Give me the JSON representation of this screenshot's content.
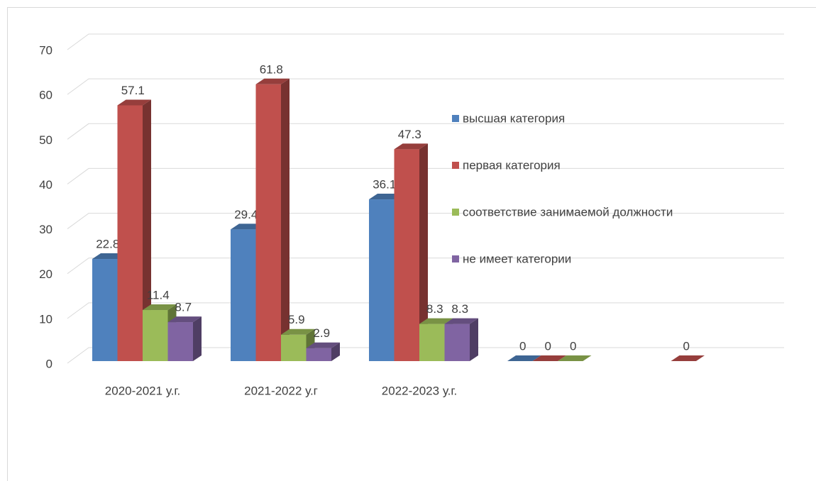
{
  "chart_data": {
    "type": "bar3d",
    "categories": [
      "2020-2021 у.г.",
      "2021-2022 у.г",
      "2022-2023 у.г.",
      null,
      null
    ],
    "series": [
      {
        "name": "высшая категория",
        "color": "#4f81bd",
        "values": [
          22.8,
          29.4,
          36.1,
          0,
          null
        ]
      },
      {
        "name": "первая категория",
        "color": "#c0504d",
        "values": [
          57.1,
          61.8,
          47.3,
          0,
          0
        ]
      },
      {
        "name": "соответствие занимаемой должности",
        "color": "#9bbb59",
        "values": [
          11.4,
          5.9,
          8.3,
          0,
          null
        ]
      },
      {
        "name": "не имеет категории",
        "color": "#8064a2",
        "values": [
          8.7,
          2.9,
          8.3,
          null,
          null
        ]
      }
    ],
    "ylim": [
      0,
      70
    ],
    "yticks": [
      0,
      10,
      20,
      30,
      40,
      50,
      60,
      70
    ],
    "grid": true,
    "legend": "right",
    "data_labels": true
  }
}
